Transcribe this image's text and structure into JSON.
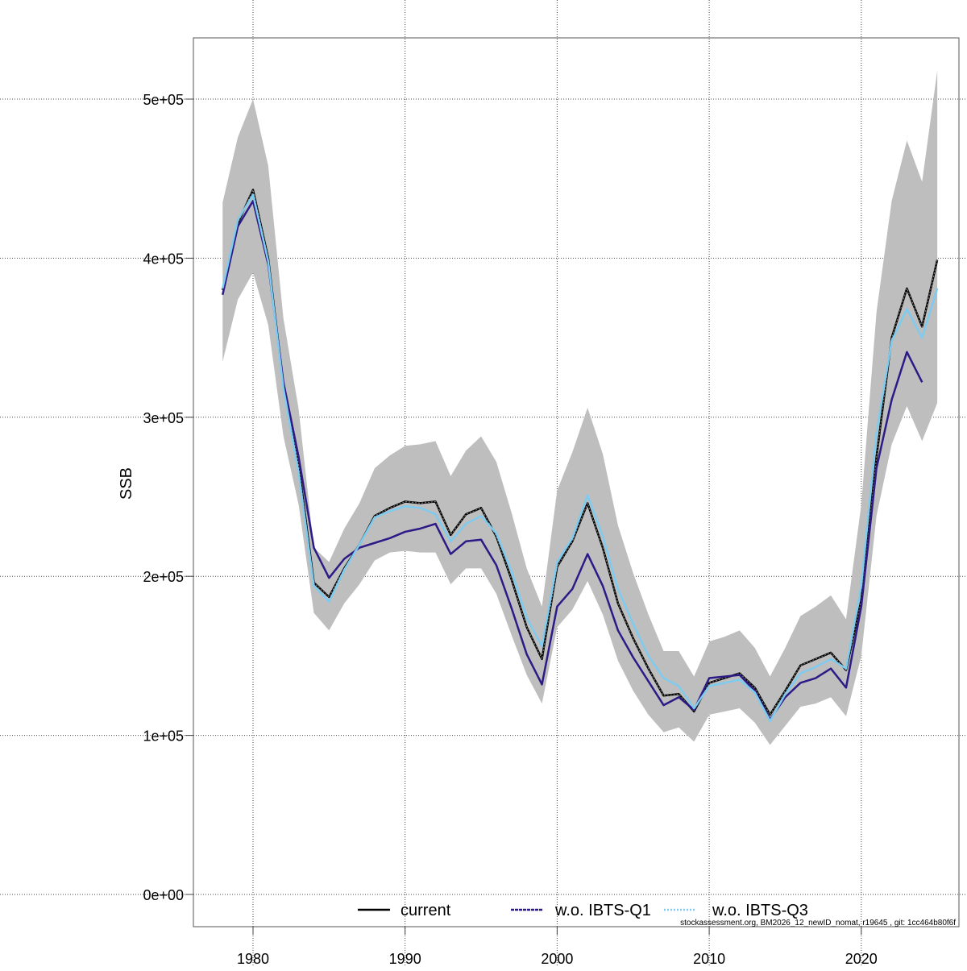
{
  "chart_data": {
    "type": "line",
    "title": "",
    "xlabel": "",
    "ylabel": "SSB",
    "xlim": [
      1976,
      2026
    ],
    "ylim": [
      -10000,
      540000
    ],
    "grid": true,
    "x_ticks": [
      1980,
      1990,
      2000,
      2010,
      2020
    ],
    "x_tick_labels": [
      "1980",
      "1990",
      "2000",
      "2010",
      "2020"
    ],
    "y_ticks": [
      0,
      100000,
      200000,
      300000,
      400000,
      500000
    ],
    "y_tick_labels": [
      "0e+00",
      "1e+05",
      "2e+05",
      "3e+05",
      "4e+05",
      "5e+05"
    ],
    "legend_placement": "bottom",
    "x": [
      1978,
      1979,
      1980,
      1981,
      1982,
      1983,
      1984,
      1985,
      1986,
      1987,
      1988,
      1989,
      1990,
      1991,
      1992,
      1993,
      1994,
      1995,
      1996,
      1997,
      1998,
      1999,
      2000,
      2001,
      2002,
      2003,
      2004,
      2005,
      2006,
      2007,
      2008,
      2009,
      2010,
      2011,
      2012,
      2013,
      2014,
      2015,
      2016,
      2017,
      2018,
      2019,
      2020,
      2021,
      2022,
      2023,
      2024,
      2025
    ],
    "band": {
      "color": "#bebebe",
      "upper": [
        435000,
        476000,
        500000,
        458000,
        362000,
        305000,
        218000,
        209000,
        230000,
        246000,
        268000,
        276000,
        282000,
        283000,
        285000,
        263000,
        279000,
        288000,
        272000,
        240000,
        205000,
        181000,
        254000,
        278000,
        306000,
        277000,
        232000,
        202000,
        176000,
        153000,
        153000,
        137000,
        159000,
        162000,
        166000,
        155000,
        137000,
        155000,
        175000,
        181000,
        188000,
        173000,
        245000,
        366000,
        436000,
        474000,
        448000,
        518000
      ],
      "lower": [
        335000,
        374000,
        391000,
        358000,
        288000,
        245000,
        177000,
        166000,
        183000,
        195000,
        210000,
        215000,
        216000,
        215000,
        215000,
        195000,
        205000,
        205000,
        189000,
        163000,
        138000,
        120000,
        168000,
        179000,
        197000,
        176000,
        147000,
        128000,
        113000,
        102000,
        105000,
        96000,
        113000,
        115000,
        117000,
        108000,
        94000,
        106000,
        118000,
        120000,
        124000,
        112000,
        150000,
        238000,
        283000,
        307000,
        285000,
        309000
      ]
    },
    "series": [
      {
        "name": "current",
        "color": "#000000",
        "values": [
          380000,
          422000,
          443000,
          400000,
          320000,
          270000,
          196000,
          187000,
          205000,
          220000,
          238000,
          243000,
          247000,
          246000,
          247000,
          226000,
          239000,
          243000,
          225000,
          198000,
          168000,
          148000,
          206000,
          222000,
          246000,
          218000,
          183000,
          161000,
          142000,
          125000,
          126000,
          115000,
          133000,
          136000,
          139000,
          130000,
          113000,
          128000,
          144000,
          148000,
          152000,
          141000,
          185000,
          275000,
          350000,
          381000,
          357000,
          399000
        ]
      },
      {
        "name": "w.o. IBTS-Q1",
        "color": "#2e1a87",
        "values": [
          377000,
          420000,
          436000,
          396000,
          322000,
          275000,
          218000,
          199000,
          211000,
          218000,
          221000,
          224000,
          228000,
          230000,
          233000,
          214000,
          222000,
          223000,
          207000,
          180000,
          151000,
          132000,
          181000,
          192000,
          214000,
          194000,
          166000,
          149000,
          134000,
          119000,
          124000,
          116000,
          136000,
          137000,
          138000,
          128000,
          110000,
          124000,
          133000,
          136000,
          142000,
          130000,
          181000,
          268000,
          311000,
          341000,
          322000,
          null
        ]
      },
      {
        "name": "w.o. IBTS-Q3",
        "color": "#7ecbf0",
        "values": [
          381000,
          424000,
          440000,
          398000,
          318000,
          265000,
          194000,
          184000,
          204000,
          220000,
          237000,
          241000,
          244000,
          243000,
          239000,
          222000,
          233000,
          238000,
          227000,
          203000,
          174000,
          156000,
          209000,
          224000,
          251000,
          225000,
          192000,
          170000,
          150000,
          136000,
          131000,
          117000,
          131000,
          133000,
          135000,
          127000,
          109000,
          126000,
          139000,
          143000,
          148000,
          142000,
          194000,
          290000,
          348000,
          368000,
          350000,
          381000
        ]
      }
    ]
  },
  "footer": {
    "credit": "stockassessment.org, BM2026_12_newID_nomat, r19645 , git: 1cc464b80f6f"
  }
}
